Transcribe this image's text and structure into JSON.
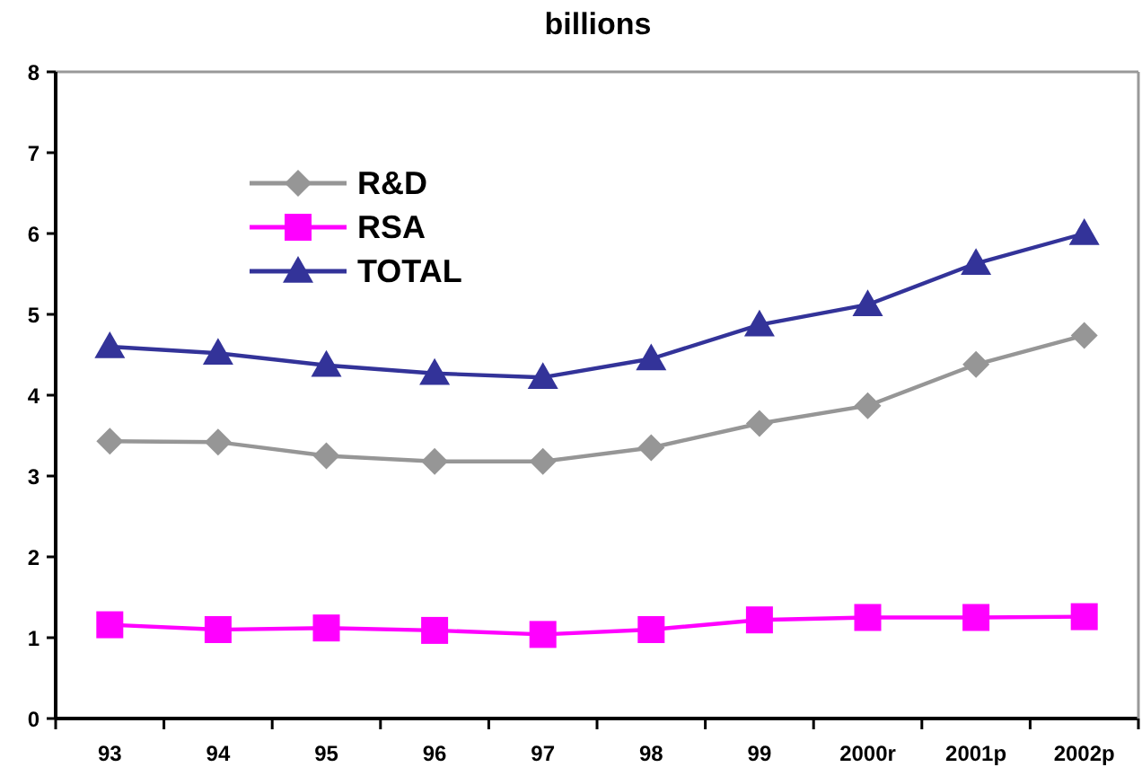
{
  "chart_data": {
    "type": "line",
    "title": "billions",
    "categories": [
      "93",
      "94",
      "95",
      "96",
      "97",
      "98",
      "99",
      "2000r",
      "2001p",
      "2002p"
    ],
    "series": [
      {
        "name": "R&D",
        "color": "#969696",
        "marker": "diamond",
        "values": [
          3.43,
          3.42,
          3.25,
          3.18,
          3.18,
          3.35,
          3.65,
          3.87,
          4.38,
          4.74
        ]
      },
      {
        "name": "RSA",
        "color": "#ff00ff",
        "marker": "square",
        "values": [
          1.16,
          1.1,
          1.12,
          1.09,
          1.04,
          1.1,
          1.22,
          1.25,
          1.25,
          1.26
        ]
      },
      {
        "name": "TOTAL",
        "color": "#333399",
        "marker": "triangle",
        "values": [
          4.6,
          4.52,
          4.37,
          4.27,
          4.22,
          4.45,
          4.87,
          5.12,
          5.63,
          6.0
        ]
      }
    ],
    "ylim": [
      0,
      8
    ],
    "yticks": [
      0,
      1,
      2,
      3,
      4,
      5,
      6,
      7,
      8
    ],
    "legend": "top left",
    "line_style": "solid"
  }
}
